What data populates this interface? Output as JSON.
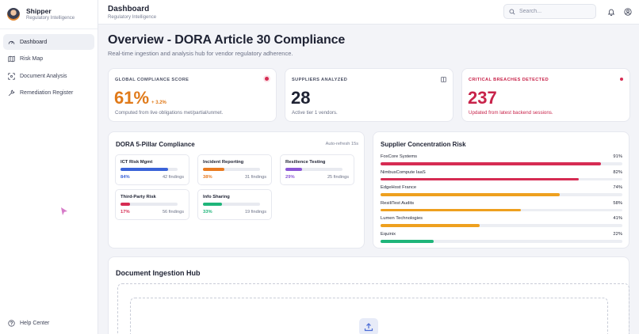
{
  "brand": {
    "name": "Shipper",
    "subtitle": "Regulatory Intelligence"
  },
  "sidebar": {
    "items": [
      {
        "label": "Dashboard",
        "icon": "gauge-icon",
        "active": true
      },
      {
        "label": "Risk Map",
        "icon": "map-icon",
        "active": false
      },
      {
        "label": "Document Analysis",
        "icon": "scan-icon",
        "active": false
      },
      {
        "label": "Remediation Register",
        "icon": "wrench-icon",
        "active": false
      }
    ],
    "help_label": "Help Center"
  },
  "header": {
    "title": "Dashboard",
    "subtitle": "Regulatory Intelligence",
    "search_placeholder": "Search..."
  },
  "main": {
    "title": "Overview - DORA Article 30 Compliance",
    "description": "Real-time ingestion and analysis hub for vendor regulatory adherence."
  },
  "kpis": {
    "compliance": {
      "label": "GLOBAL COMPLIANCE SCORE",
      "value": "61%",
      "delta": "+ 3.2%",
      "note": "Computed from live obligations met/partial/unmet.",
      "color": "#e07a1a"
    },
    "suppliers": {
      "label": "SUPPLIERS ANALYZED",
      "value": "28",
      "note": "Active tier 1 vendors."
    },
    "breaches": {
      "label": "CRITICAL BREACHES DETECTED",
      "value": "237",
      "note": "Updated from latest backend sessions.",
      "color": "#c8234a"
    }
  },
  "pillars": {
    "title": "DORA 5-Pillar Compliance",
    "refresh": "Auto-refresh 15s",
    "items": [
      {
        "name": "ICT Risk Mgmt",
        "pct": "84%",
        "value": 0.84,
        "findings": "42 findings",
        "color": "#3a63d8"
      },
      {
        "name": "Incident Reporting",
        "pct": "38%",
        "value": 0.38,
        "findings": "31 findings",
        "color": "#e97a1f"
      },
      {
        "name": "Resilience Testing",
        "pct": "29%",
        "value": 0.29,
        "findings": "25 findings",
        "color": "#8b56d6"
      },
      {
        "name": "Third-Party Risk",
        "pct": "17%",
        "value": 0.17,
        "findings": "56 findings",
        "color": "#d62c53"
      },
      {
        "name": "Info Sharing",
        "pct": "33%",
        "value": 0.33,
        "findings": "19 findings",
        "color": "#1fb57a"
      }
    ]
  },
  "concentration": {
    "title": "Supplier Concentration Risk",
    "items": [
      {
        "name": "FoxCore Systems",
        "pct": "91%",
        "value": 0.91,
        "color": "#d62c53"
      },
      {
        "name": "NimbusCompute IaaS",
        "pct": "82%",
        "value": 0.82,
        "color": "#d62c53"
      },
      {
        "name": "EdgeHost France",
        "pct": "74%",
        "value": 0.74,
        "color": "#eea01f"
      },
      {
        "name": "ResiliTest Audits",
        "pct": "58%",
        "value": 0.58,
        "color": "#eea01f"
      },
      {
        "name": "Lumen Technologies",
        "pct": "41%",
        "value": 0.41,
        "color": "#eea01f"
      },
      {
        "name": "Equinix",
        "pct": "22%",
        "value": 0.22,
        "color": "#1fb57a"
      }
    ]
  },
  "ingestion": {
    "title": "Document Ingestion Hub"
  }
}
